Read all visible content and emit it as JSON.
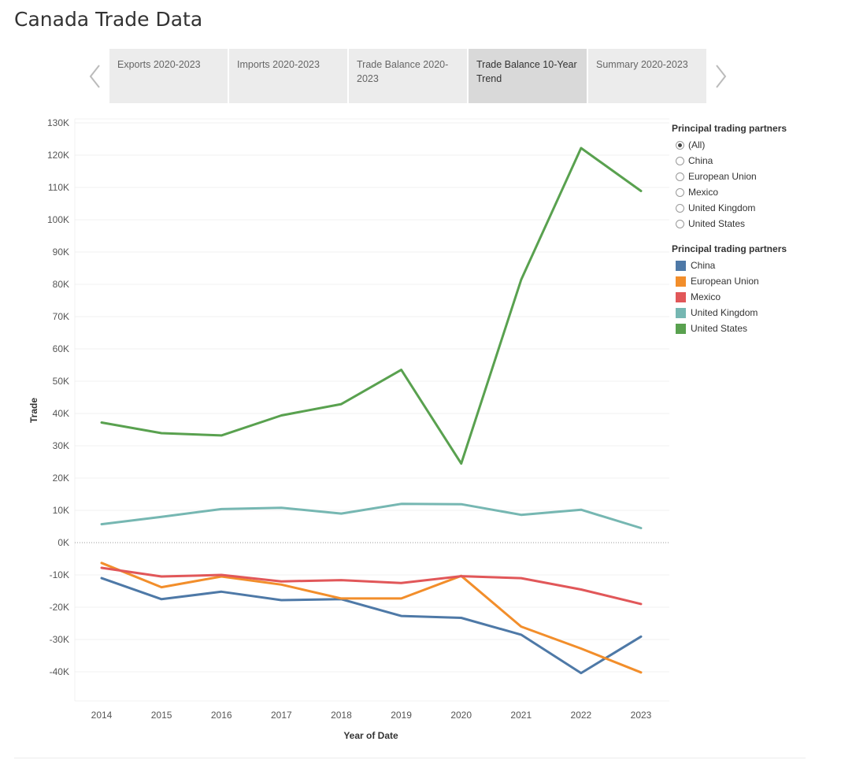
{
  "page": {
    "title": "Canada Trade Data"
  },
  "nav": {
    "prev_icon": "chevron-left-icon",
    "next_icon": "chevron-right-icon"
  },
  "tabs": [
    {
      "label": "Exports 2020-2023",
      "active": false
    },
    {
      "label": "Imports 2020-2023",
      "active": false
    },
    {
      "label": "Trade Balance 2020-2023",
      "active": false
    },
    {
      "label": "Trade Balance 10-Year Trend",
      "active": true
    },
    {
      "label": "Summary 2020-2023",
      "active": false
    }
  ],
  "filter": {
    "title": "Principal trading partners",
    "options": [
      "(All)",
      "China",
      "European Union",
      "Mexico",
      "United Kingdom",
      "United States"
    ],
    "selected": "(All)"
  },
  "legend": {
    "title": "Principal trading partners"
  },
  "chart_data": {
    "type": "line",
    "title": "",
    "xlabel": "Year of Date",
    "ylabel": "Trade",
    "x": [
      "2014",
      "2015",
      "2016",
      "2017",
      "2018",
      "2019",
      "2020",
      "2021",
      "2022",
      "2023"
    ],
    "ylim": [
      -50000,
      130000
    ],
    "yticks": [
      130000,
      120000,
      110000,
      100000,
      90000,
      80000,
      70000,
      60000,
      50000,
      40000,
      30000,
      20000,
      10000,
      0,
      -10000,
      -20000,
      -30000,
      -40000
    ],
    "ytick_labels": [
      "130K",
      "120K",
      "110K",
      "100K",
      "90K",
      "80K",
      "70K",
      "60K",
      "50K",
      "40K",
      "30K",
      "20K",
      "10K",
      "0K",
      "-10K",
      "-20K",
      "-30K",
      "-40K"
    ],
    "grid": true,
    "legend_position": "right",
    "series": [
      {
        "name": "China",
        "color": "#4e79a7",
        "values": [
          -11000,
          -17500,
          -15200,
          -17800,
          -17500,
          -22700,
          -23300,
          -28500,
          -40400,
          -29100
        ]
      },
      {
        "name": "European Union",
        "color": "#f28e2b",
        "values": [
          -6300,
          -13800,
          -10500,
          -13000,
          -17300,
          -17300,
          -10300,
          -26000,
          -32800,
          -40200
        ]
      },
      {
        "name": "Mexico",
        "color": "#e15759",
        "values": [
          -7800,
          -10500,
          -10000,
          -12000,
          -11600,
          -12500,
          -10400,
          -11000,
          -14500,
          -19000
        ]
      },
      {
        "name": "United Kingdom",
        "color": "#76b7b2",
        "values": [
          5700,
          8000,
          10400,
          10800,
          9000,
          12000,
          11900,
          8600,
          10200,
          4500
        ]
      },
      {
        "name": "United States",
        "color": "#59a14f",
        "values": [
          37200,
          33900,
          33200,
          39400,
          42900,
          53500,
          24500,
          81400,
          122200,
          108900
        ]
      }
    ]
  }
}
